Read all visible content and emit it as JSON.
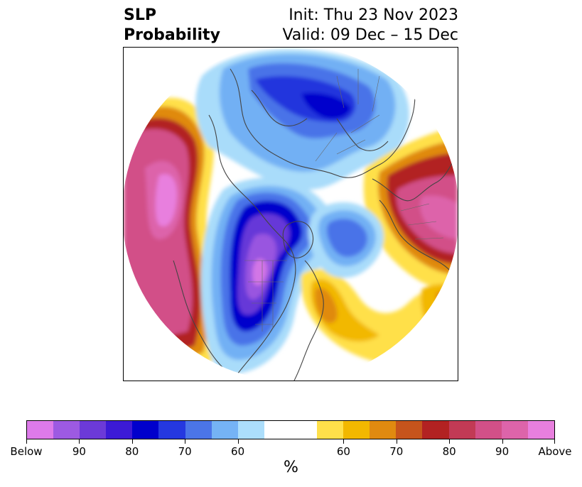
{
  "title": {
    "left_line1": "SLP",
    "left_line2": "Probability",
    "right_line1": "Init: Thu 23 Nov 2023",
    "right_line2": "Valid: 09 Dec – 15 Dec"
  },
  "map": {
    "projection": "north-polar-stereographic",
    "fields": [
      {
        "name": "below-normal",
        "region": "north-atlantic-europe-arctic",
        "colors": [
          "#a9dcfa",
          "#72b0f4",
          "#4a73e8",
          "#2036dd",
          "#0000cc"
        ]
      },
      {
        "name": "below-normal",
        "region": "north-america-central",
        "colors": [
          "#a9dcfa",
          "#72b0f4",
          "#4a73e8",
          "#2036dd",
          "#0000cc",
          "#3a1cd6",
          "#6638d8",
          "#9955e0",
          "#d276e6"
        ]
      },
      {
        "name": "above-normal",
        "region": "north-pacific",
        "colors": [
          "#ffe04a",
          "#f2b800",
          "#e08a10",
          "#c8541c",
          "#b22222",
          "#c23a55",
          "#d25088",
          "#dd64aa",
          "#e87fde"
        ]
      },
      {
        "name": "above-normal",
        "region": "siberia-east-asia",
        "colors": [
          "#ffe04a",
          "#f2b800",
          "#e08a10",
          "#c8541c",
          "#b22222",
          "#c23a55",
          "#d25088"
        ]
      },
      {
        "name": "above-normal",
        "region": "western-atlantic",
        "colors": [
          "#ffe04a",
          "#f2b800",
          "#e08a10"
        ]
      }
    ]
  },
  "colorbar": {
    "colors": [
      "#dd7aea",
      "#9d5ae2",
      "#6c3ad8",
      "#3c1ad6",
      "#0000cc",
      "#2538e0",
      "#4b75e8",
      "#75b3f5",
      "#acdefb",
      "#ffffff",
      "#ffffff",
      "#ffe04a",
      "#f2b800",
      "#e08a10",
      "#c6541c",
      "#b22222",
      "#c23a55",
      "#d25088",
      "#dd64aa",
      "#e87fde"
    ],
    "tick_labels": [
      "Below",
      "90",
      "80",
      "70",
      "60",
      "60",
      "70",
      "80",
      "90",
      "Above"
    ],
    "unit": "%"
  }
}
